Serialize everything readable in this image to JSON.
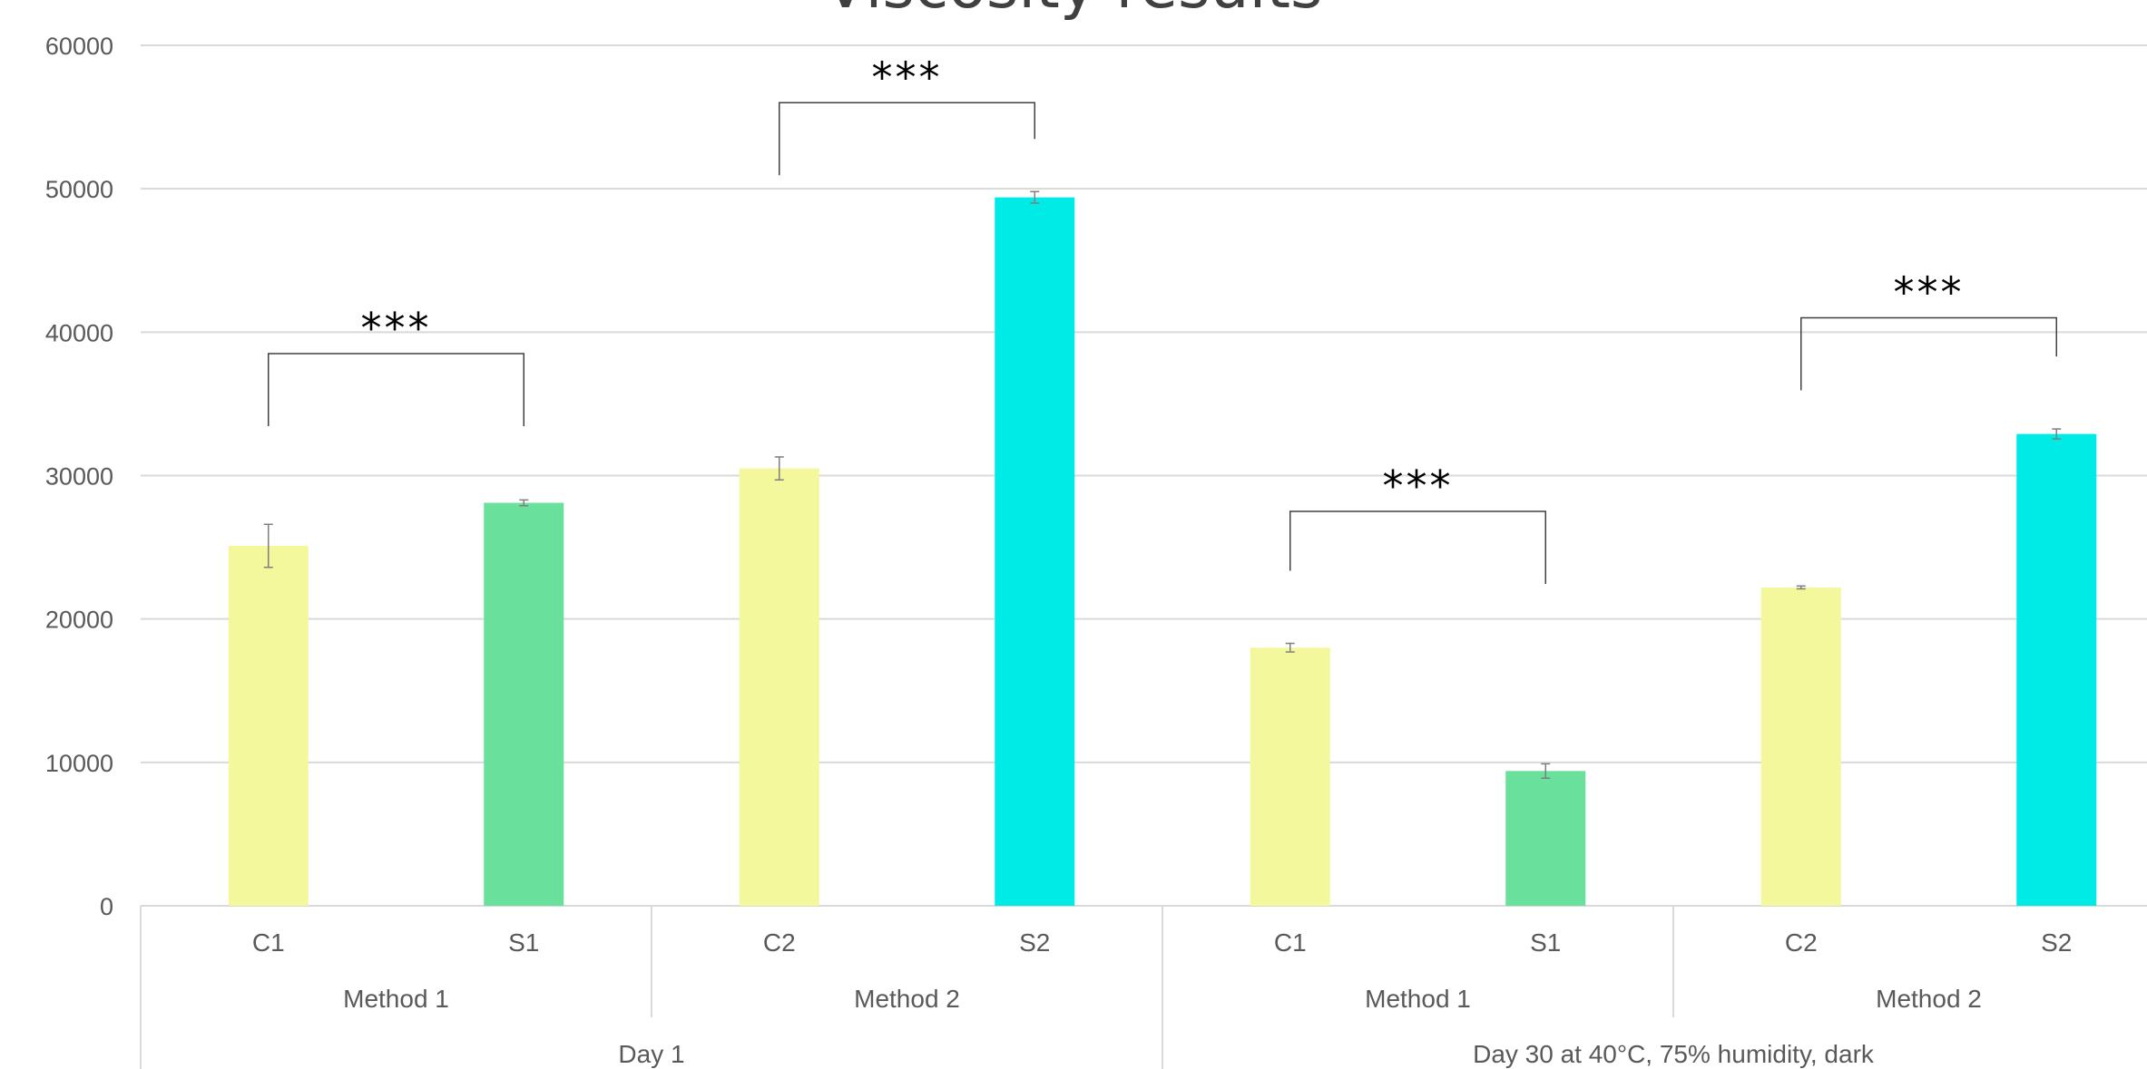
{
  "chart_data": {
    "type": "bar",
    "title": "Viscosity results",
    "ylim": [
      0,
      60000
    ],
    "yticks": [
      0,
      10000,
      20000,
      30000,
      40000,
      50000,
      60000
    ],
    "grid": true,
    "categories": [
      "C1",
      "S1",
      "C2",
      "S2",
      "C1",
      "S1",
      "C2",
      "S2"
    ],
    "values": [
      25100,
      28100,
      30500,
      49400,
      18000,
      9400,
      22200,
      32900
    ],
    "errors": [
      1500,
      200,
      800,
      400,
      300,
      500,
      100,
      350
    ],
    "bar_colors": [
      "#f3f89c",
      "#69e09b",
      "#f3f89c",
      "#00ebe5",
      "#f3f89c",
      "#69e09b",
      "#f3f89c",
      "#00ebe5"
    ],
    "methods": [
      "Method 1",
      "Method 2",
      "Method 1",
      "Method 2"
    ],
    "groups": [
      "Day 1",
      "Day 30 at 40°C, 75% humidity, dark"
    ],
    "significance": [
      {
        "from": 0,
        "to": 1,
        "label": "***",
        "level": 38500
      },
      {
        "from": 2,
        "to": 3,
        "label": "***",
        "level": 56000
      },
      {
        "from": 4,
        "to": 5,
        "label": "***",
        "level": 27500
      },
      {
        "from": 6,
        "to": 7,
        "label": "***",
        "level": 41000
      }
    ]
  }
}
